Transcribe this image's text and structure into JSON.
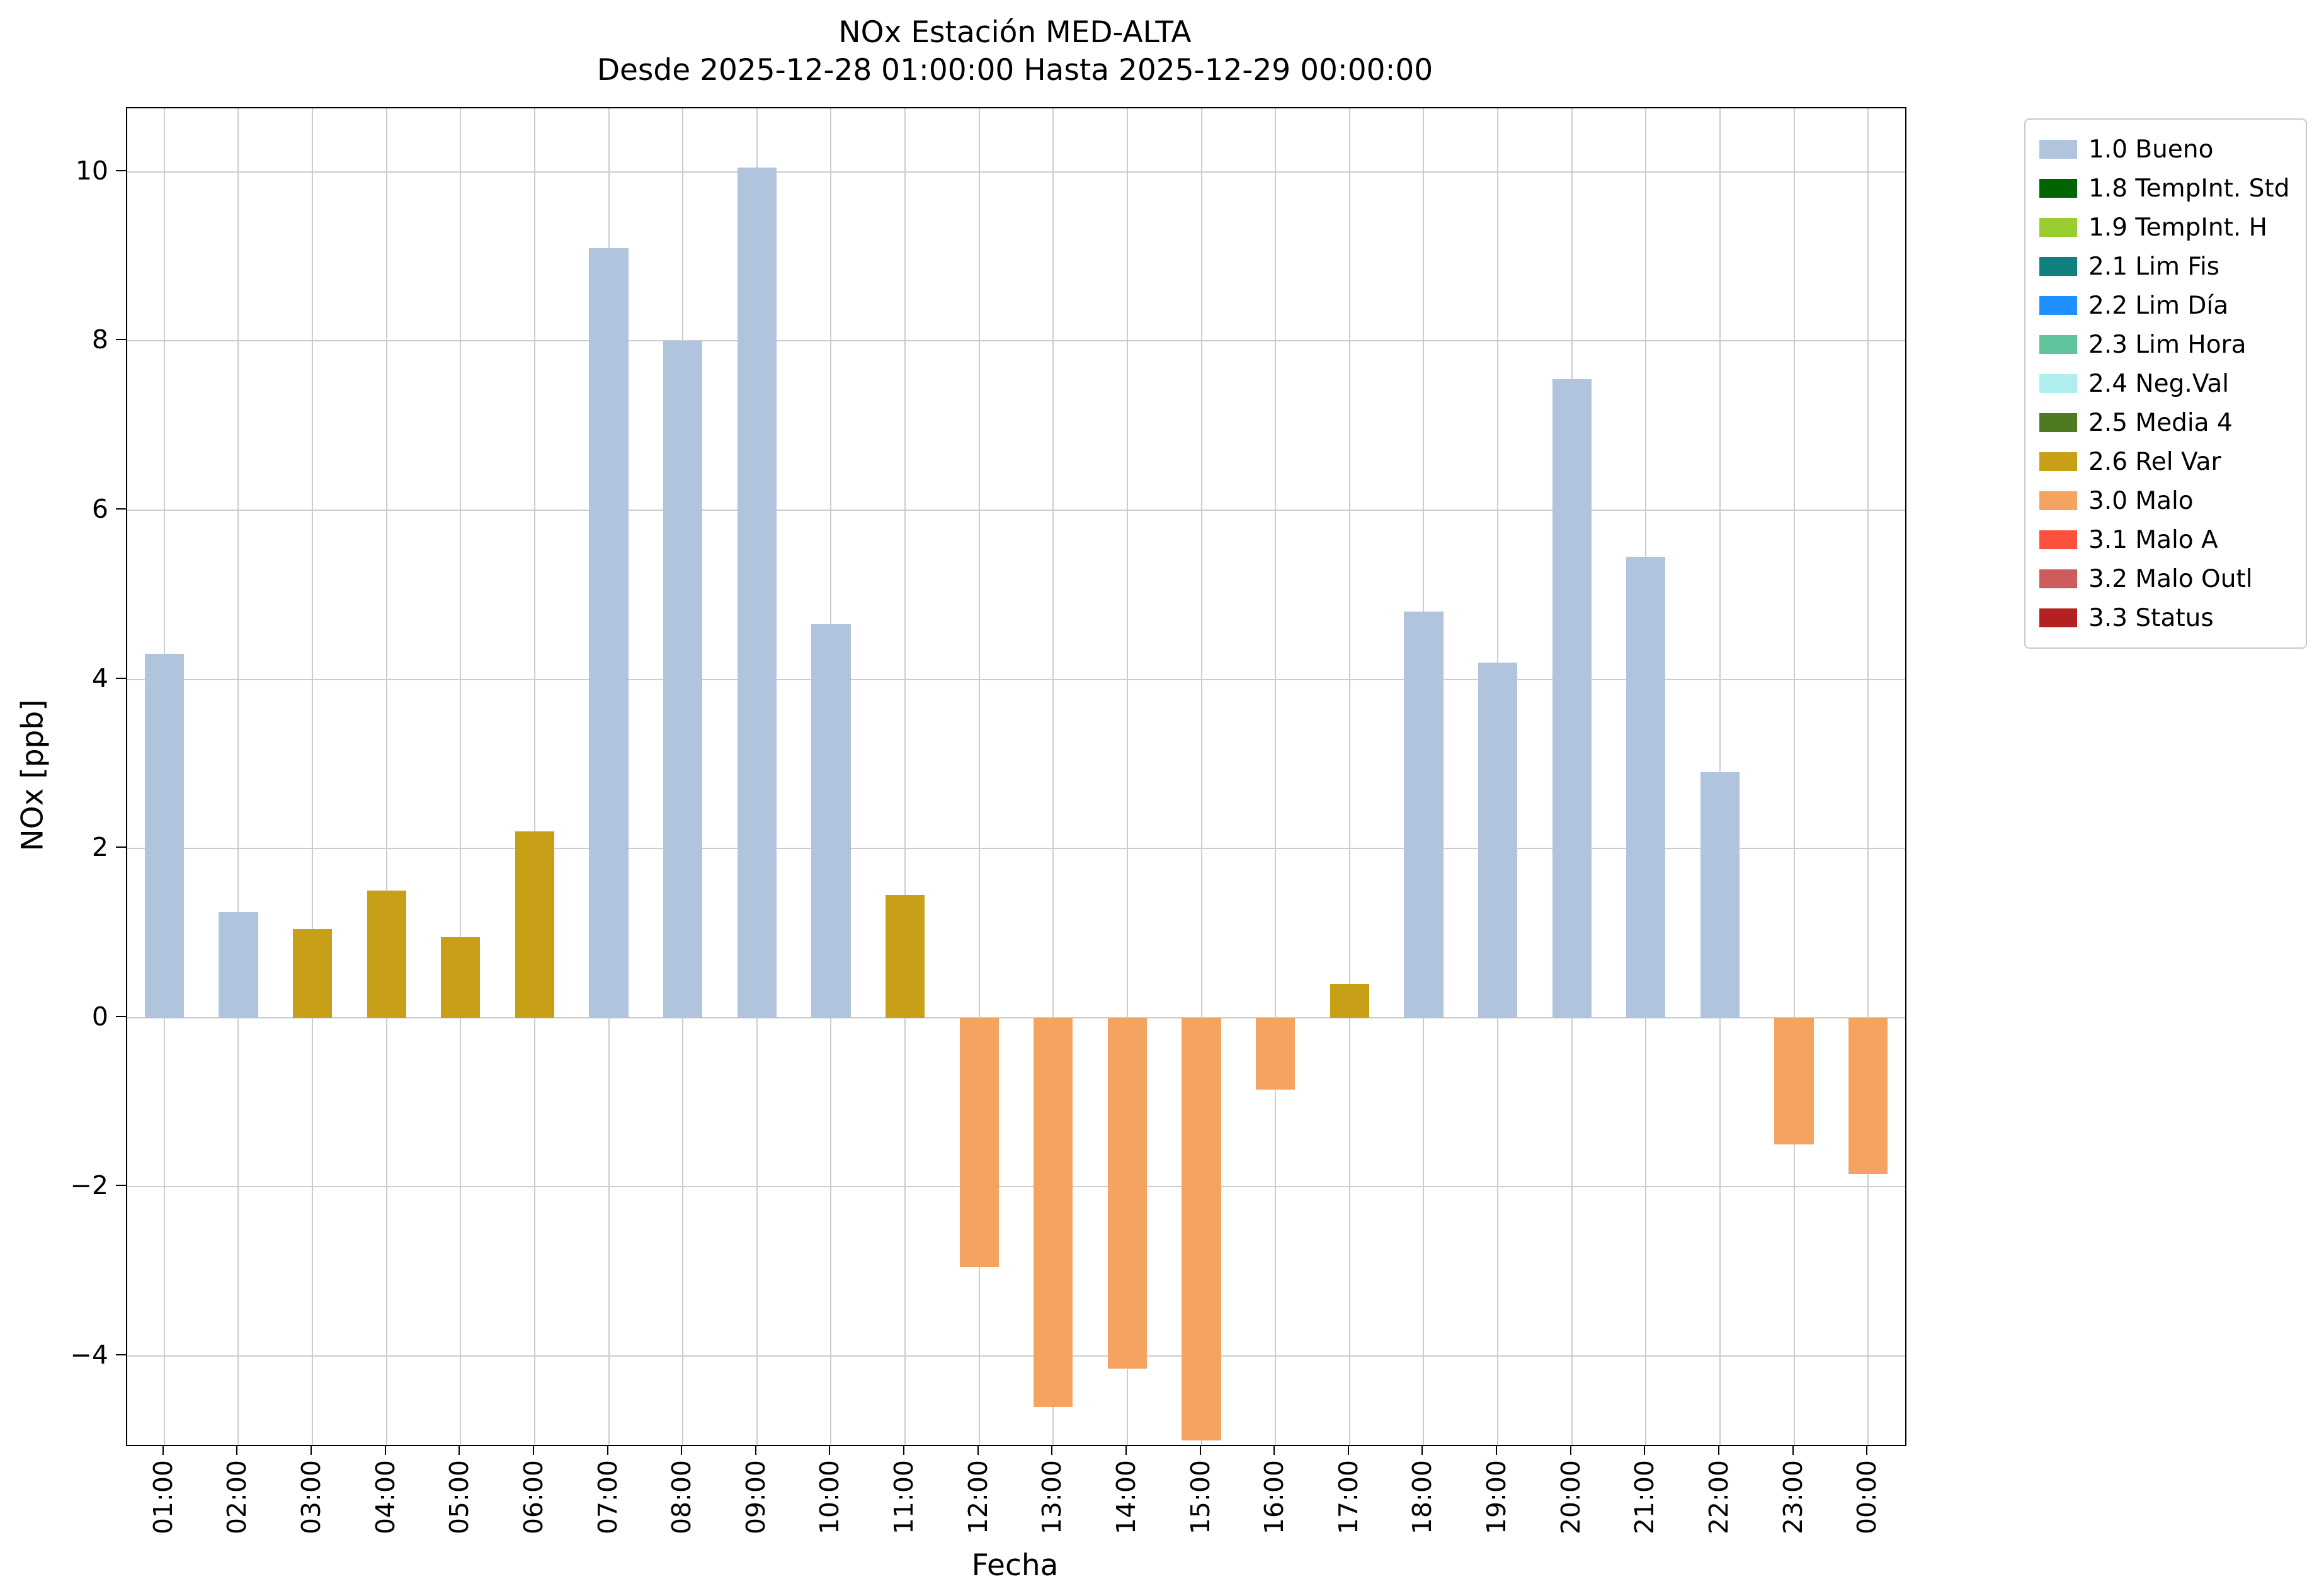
{
  "chart_data": {
    "type": "bar",
    "title": "NOx Estación MED-ALTA",
    "subtitle": "Desde 2025-12-28 01:00:00 Hasta 2025-12-29 00:00:00",
    "xlabel": "Fecha",
    "ylabel": "NOx [ppb]",
    "ylim": [
      -5.05,
      10.75
    ],
    "yticks": [
      -4,
      -2,
      0,
      2,
      4,
      6,
      8,
      10
    ],
    "grid": true,
    "legend_position": "upper right outside",
    "bars": [
      {
        "time": "01:00",
        "value": 4.3,
        "status": "1.0 Bueno"
      },
      {
        "time": "02:00",
        "value": 1.25,
        "status": "1.0 Bueno"
      },
      {
        "time": "03:00",
        "value": 1.05,
        "status": "2.6 Rel Var"
      },
      {
        "time": "04:00",
        "value": 1.5,
        "status": "2.6 Rel Var"
      },
      {
        "time": "05:00",
        "value": 0.95,
        "status": "2.6 Rel Var"
      },
      {
        "time": "06:00",
        "value": 2.2,
        "status": "2.6 Rel Var"
      },
      {
        "time": "07:00",
        "value": 9.1,
        "status": "1.0 Bueno"
      },
      {
        "time": "08:00",
        "value": 8.0,
        "status": "1.0 Bueno"
      },
      {
        "time": "09:00",
        "value": 10.05,
        "status": "1.0 Bueno"
      },
      {
        "time": "10:00",
        "value": 4.65,
        "status": "1.0 Bueno"
      },
      {
        "time": "11:00",
        "value": 1.45,
        "status": "2.6 Rel Var"
      },
      {
        "time": "12:00",
        "value": -2.95,
        "status": "3.0 Malo"
      },
      {
        "time": "13:00",
        "value": -4.6,
        "status": "3.0 Malo"
      },
      {
        "time": "14:00",
        "value": -4.15,
        "status": "3.0 Malo"
      },
      {
        "time": "15:00",
        "value": -5.0,
        "status": "3.0 Malo"
      },
      {
        "time": "16:00",
        "value": -0.85,
        "status": "3.0 Malo"
      },
      {
        "time": "17:00",
        "value": 0.4,
        "status": "2.6 Rel Var"
      },
      {
        "time": "18:00",
        "value": 4.8,
        "status": "1.0 Bueno"
      },
      {
        "time": "19:00",
        "value": 4.2,
        "status": "1.0 Bueno"
      },
      {
        "time": "20:00",
        "value": 7.55,
        "status": "1.0 Bueno"
      },
      {
        "time": "21:00",
        "value": 5.45,
        "status": "1.0 Bueno"
      },
      {
        "time": "22:00",
        "value": 2.9,
        "status": "1.0 Bueno"
      },
      {
        "time": "23:00",
        "value": -1.5,
        "status": "3.0 Malo"
      },
      {
        "time": "00:00",
        "value": -1.85,
        "status": "3.0 Malo"
      }
    ],
    "legend": [
      {
        "label": "1.0 Bueno",
        "color": "#B0C4DE"
      },
      {
        "label": "1.8 TempInt. Std",
        "color": "#006400"
      },
      {
        "label": "1.9 TempInt. H",
        "color": "#9ACD32"
      },
      {
        "label": "2.1 Lim Fis",
        "color": "#0E8080"
      },
      {
        "label": "2.2 Lim Día",
        "color": "#1E90FF"
      },
      {
        "label": "2.3 Lim Hora",
        "color": "#5FC39B"
      },
      {
        "label": "2.4 Neg.Val",
        "color": "#AFEEEE"
      },
      {
        "label": "2.5 Media 4",
        "color": "#4E7B1F"
      },
      {
        "label": "2.6 Rel Var",
        "color": "#C7A018"
      },
      {
        "label": "3.0 Malo",
        "color": "#F4A460"
      },
      {
        "label": "3.1 Malo A",
        "color": "#FB503B"
      },
      {
        "label": "3.2 Malo Outl",
        "color": "#CD5C5C"
      },
      {
        "label": "3.3 Status",
        "color": "#B22222"
      }
    ]
  }
}
